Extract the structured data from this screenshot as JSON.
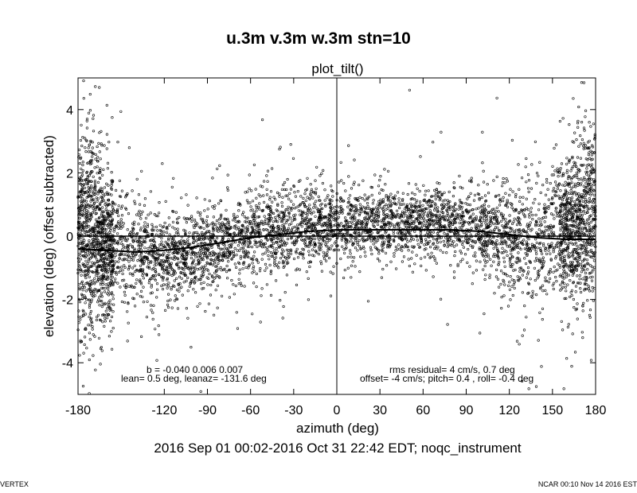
{
  "title": "u.3m v.3m w.3m stn=10",
  "subtitle": "plot_tilt()",
  "footer": {
    "left": "VERTEX",
    "right": "NCAR 00:10 Nov 14 2016 EST",
    "date_range": "2016 Sep 01 00:02-2016 Oct 31 22:42 EDT; noqc_instrument"
  },
  "annotations": {
    "coeffs": "b = -0.040  0.006  0.007",
    "lean": "lean= 0.5 deg, leanaz= -131.6 deg",
    "rms": "rms residual= 4 cm/s, 0.7 deg",
    "offset": "offset= -4 cm/s; pitch=  0.4 , roll= -0.4 deg"
  },
  "chart_data": {
    "type": "scatter",
    "title": "u.3m v.3m w.3m stn=10",
    "xlabel": "azimuth (deg)",
    "ylabel": "elevation (deg)  (offset subtracted)",
    "xlim": [
      -180,
      180
    ],
    "ylim": [
      -5,
      5
    ],
    "xticks": [
      -180,
      -120,
      -90,
      -60,
      -30,
      0,
      30,
      60,
      90,
      120,
      150,
      180
    ],
    "yticks": [
      -4,
      -2,
      0,
      2,
      4
    ],
    "grid": false,
    "vline_x": 0,
    "fit_line": {
      "x": [
        -180,
        -160,
        -140,
        -120,
        -100,
        -80,
        -60,
        -40,
        -20,
        0,
        20,
        40,
        60,
        80,
        100,
        120,
        140,
        160,
        180
      ],
      "y": [
        -0.4,
        -0.45,
        -0.5,
        -0.45,
        -0.35,
        -0.2,
        -0.05,
        0.05,
        0.15,
        0.2,
        0.2,
        0.2,
        0.2,
        0.2,
        0.15,
        0.05,
        -0.05,
        -0.1,
        -0.1
      ]
    },
    "zero_line": {
      "x": [
        -180,
        180
      ],
      "y": [
        0,
        0
      ]
    },
    "scatter_profile": {
      "x": [
        -180,
        -170,
        -160,
        -140,
        -120,
        -100,
        -80,
        -60,
        -40,
        -20,
        0,
        20,
        40,
        60,
        80,
        100,
        120,
        140,
        160,
        180
      ],
      "y_center": [
        0.3,
        0.0,
        -0.3,
        -0.5,
        -0.6,
        -0.5,
        -0.3,
        0.0,
        0.2,
        0.3,
        0.35,
        0.35,
        0.4,
        0.5,
        0.4,
        0.2,
        -0.1,
        -0.2,
        0.2,
        0.7
      ],
      "y_spread": [
        1.3,
        1.6,
        1.1,
        0.8,
        0.7,
        0.6,
        0.6,
        0.7,
        0.6,
        0.6,
        0.6,
        0.5,
        0.5,
        0.5,
        0.5,
        0.6,
        0.8,
        1.0,
        1.2,
        1.3
      ],
      "approx_points": 6000
    }
  }
}
